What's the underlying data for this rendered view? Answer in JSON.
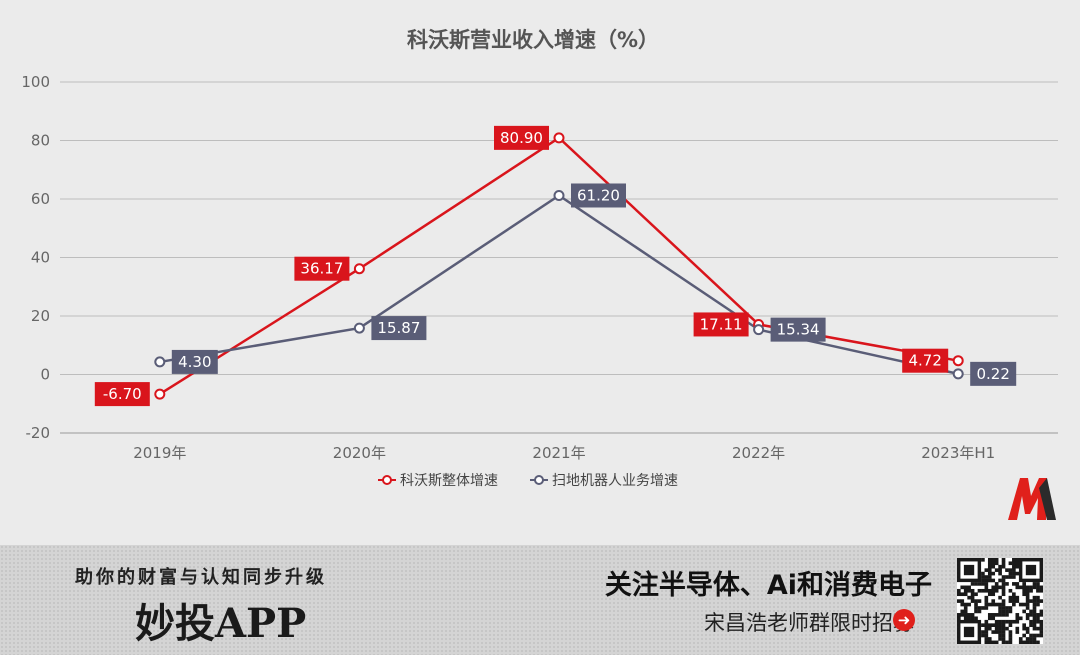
{
  "chart_data": {
    "type": "line",
    "title": "科沃斯营业收入增速（%）",
    "categories": [
      "2019年",
      "2020年",
      "2021年",
      "2022年",
      "2023年H1"
    ],
    "ylim": [
      -20,
      100
    ],
    "yticks": [
      100,
      80,
      60,
      40,
      20,
      0,
      -20
    ],
    "grid": true,
    "legend_position": "bottom-center",
    "series": [
      {
        "name": "科沃斯整体增速",
        "color": "#d9151c",
        "values": [
          -6.7,
          36.17,
          80.9,
          17.11,
          4.72
        ],
        "labels": [
          "-6.70",
          "36.17",
          "80.90",
          "17.11",
          "4.72"
        ],
        "label_side": "left"
      },
      {
        "name": "扫地机器人业务增速",
        "color": "#5a5d77",
        "values": [
          4.3,
          15.87,
          61.2,
          15.34,
          0.22
        ],
        "labels": [
          "4.30",
          "15.87",
          "61.20",
          "15.34",
          "0.22"
        ],
        "label_side": "right"
      }
    ]
  },
  "footer": {
    "slogan": "助你的财富与认知同步升级",
    "app_name": "妙投APP",
    "headline": "关注半导体、Ai和消费电子",
    "subline": "宋昌浩老师群限时招募",
    "arrow_icon": "➜"
  },
  "brand": {
    "logo": "huxiu-m-logo",
    "accent": "#d9151c"
  }
}
